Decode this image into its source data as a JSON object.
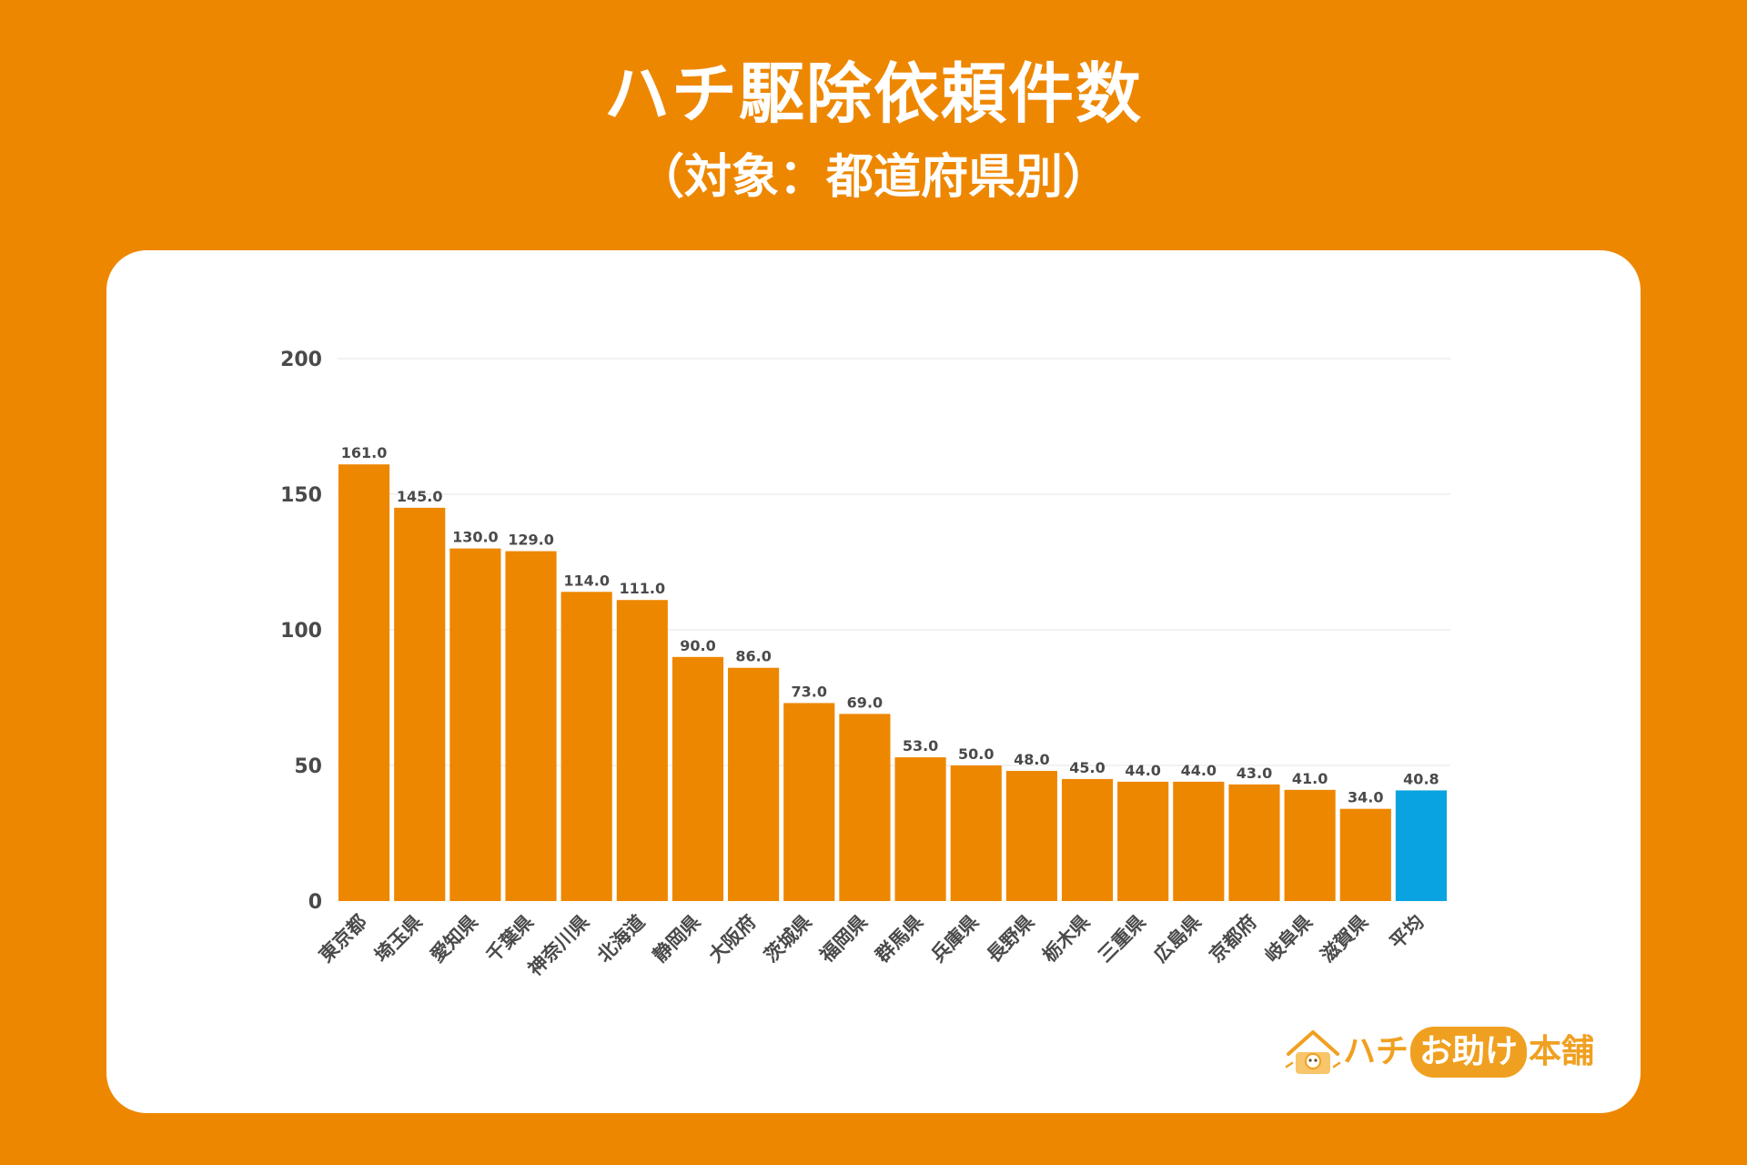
{
  "header": {
    "title": "ハチ駆除依頼件数",
    "subtitle": "（対象：都道府県別）"
  },
  "logo": {
    "part1": "ハチ",
    "part2": "お助け",
    "part3": "本舗"
  },
  "colors": {
    "background": "#EE8700",
    "bar": "#EE8700",
    "average_bar": "#0AA3E1",
    "label_text": "#4A4A4A",
    "grid": "#E6E6E6"
  },
  "chart_data": {
    "type": "bar",
    "title": "ハチ駆除依頼件数",
    "subtitle": "（対象：都道府県別）",
    "xlabel": "",
    "ylabel": "",
    "ylim": [
      0,
      200
    ],
    "yticks": [
      0,
      50,
      100,
      150,
      200
    ],
    "grid": true,
    "categories": [
      "東京都",
      "埼玉県",
      "愛知県",
      "千葉県",
      "神奈川県",
      "北海道",
      "静岡県",
      "大阪府",
      "茨城県",
      "福岡県",
      "群馬県",
      "兵庫県",
      "長野県",
      "栃木県",
      "三重県",
      "広島県",
      "京都府",
      "岐阜県",
      "滋賀県",
      "平均"
    ],
    "values": [
      161.0,
      145.0,
      130.0,
      129.0,
      114.0,
      111.0,
      90.0,
      86.0,
      73.0,
      69.0,
      53.0,
      50.0,
      48.0,
      45.0,
      44.0,
      44.0,
      43.0,
      41.0,
      34.0,
      40.8
    ],
    "value_labels": [
      "161.0",
      "145.0",
      "130.0",
      "129.0",
      "114.0",
      "111.0",
      "90.0",
      "86.0",
      "73.0",
      "69.0",
      "53.0",
      "50.0",
      "48.0",
      "45.0",
      "44.0",
      "44.0",
      "43.0",
      "41.0",
      "34.0",
      "40.8"
    ],
    "highlight_category": "平均"
  }
}
